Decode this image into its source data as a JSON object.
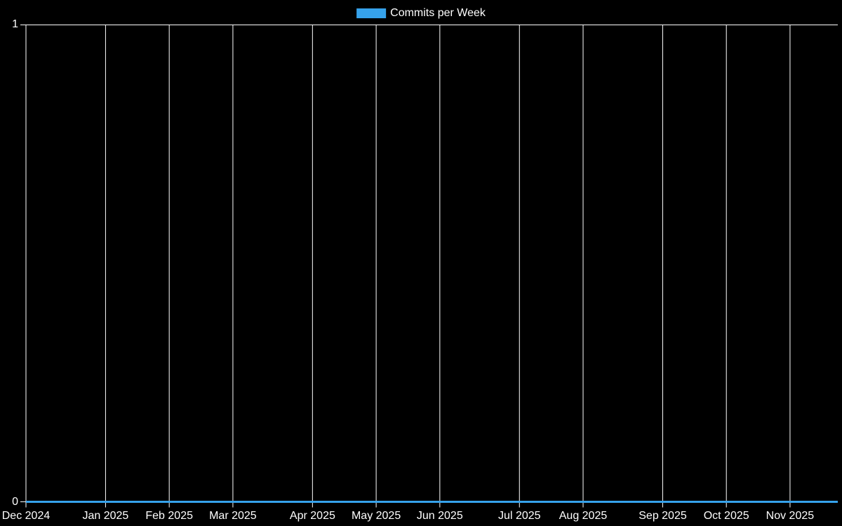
{
  "chart_data": {
    "type": "line",
    "title": "",
    "legend": {
      "label": "Commits per Week",
      "position": "top-center"
    },
    "x_unit": "week",
    "x_range": [
      "Dec 2024",
      "Nov 2025"
    ],
    "x_ticks": [
      {
        "label": "Dec 2024",
        "week": 0
      },
      {
        "label": "Jan 2025",
        "week": 5
      },
      {
        "label": "Feb 2025",
        "week": 9
      },
      {
        "label": "Mar 2025",
        "week": 13
      },
      {
        "label": "Apr 2025",
        "week": 18
      },
      {
        "label": "May 2025",
        "week": 22
      },
      {
        "label": "Jun 2025",
        "week": 26
      },
      {
        "label": "Jul 2025",
        "week": 31
      },
      {
        "label": "Aug 2025",
        "week": 35
      },
      {
        "label": "Sep 2025",
        "week": 40
      },
      {
        "label": "Oct 2025",
        "week": 44
      },
      {
        "label": "Nov 2025",
        "week": 48
      }
    ],
    "y_ticks": [
      {
        "value": 0,
        "label": "0"
      },
      {
        "value": 1,
        "label": "1"
      }
    ],
    "ylim": [
      0,
      1
    ],
    "grid": true,
    "series": [
      {
        "name": "Commits per Week",
        "color": "#36a2eb",
        "values": [
          0,
          0,
          0,
          0,
          0,
          0,
          0,
          0,
          0,
          0,
          0,
          0,
          0,
          0,
          0,
          0,
          0,
          0,
          0,
          0,
          0,
          0,
          0,
          0,
          0,
          0,
          0,
          0,
          0,
          0,
          0,
          0,
          0,
          0,
          0,
          0,
          0,
          0,
          0,
          0,
          0,
          0,
          0,
          0,
          0,
          0,
          0,
          0,
          0,
          0,
          0,
          0
        ]
      }
    ],
    "colors": {
      "background": "#000000",
      "grid": "#ffffff",
      "text": "#ffffff",
      "series": "#36a2eb"
    }
  }
}
